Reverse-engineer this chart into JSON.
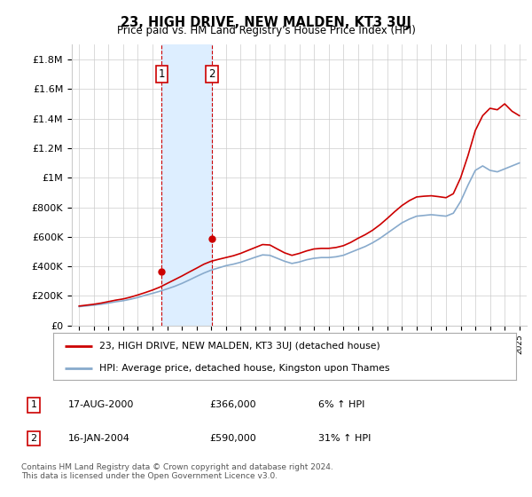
{
  "title": "23, HIGH DRIVE, NEW MALDEN, KT3 3UJ",
  "subtitle": "Price paid vs. HM Land Registry's House Price Index (HPI)",
  "ylabel_ticks": [
    "£0",
    "£200K",
    "£400K",
    "£600K",
    "£800K",
    "£1M",
    "£1.2M",
    "£1.4M",
    "£1.6M",
    "£1.8M"
  ],
  "ytick_values": [
    0,
    200000,
    400000,
    600000,
    800000,
    1000000,
    1200000,
    1400000,
    1600000,
    1800000
  ],
  "ylim": [
    0,
    1900000
  ],
  "xlim_start": 1994.5,
  "xlim_end": 2025.5,
  "sale1_x": 2000.62,
  "sale1_y": 366000,
  "sale2_x": 2004.04,
  "sale2_y": 590000,
  "sale1_label": "1",
  "sale2_label": "2",
  "vline1_x": 2000.62,
  "vline2_x": 2004.04,
  "shaded_x1": 2000.62,
  "shaded_x2": 2004.04,
  "legend_line1": "23, HIGH DRIVE, NEW MALDEN, KT3 3UJ (detached house)",
  "legend_line2": "HPI: Average price, detached house, Kingston upon Thames",
  "table_row1_num": "1",
  "table_row1_date": "17-AUG-2000",
  "table_row1_price": "£366,000",
  "table_row1_hpi": "6% ↑ HPI",
  "table_row2_num": "2",
  "table_row2_date": "16-JAN-2004",
  "table_row2_price": "£590,000",
  "table_row2_hpi": "31% ↑ HPI",
  "footnote1": "Contains HM Land Registry data © Crown copyright and database right 2024.",
  "footnote2": "This data is licensed under the Open Government Licence v3.0.",
  "line_color_red": "#cc0000",
  "line_color_blue": "#88aacc",
  "shade_color": "#ddeeff",
  "grid_color": "#cccccc",
  "bg_color": "#ffffff",
  "hpi_years": [
    1995.0,
    1995.5,
    1996.0,
    1996.5,
    1997.0,
    1997.5,
    1998.0,
    1998.5,
    1999.0,
    1999.5,
    2000.0,
    2000.5,
    2001.0,
    2001.5,
    2002.0,
    2002.5,
    2003.0,
    2003.5,
    2004.0,
    2004.5,
    2005.0,
    2005.5,
    2006.0,
    2006.5,
    2007.0,
    2007.5,
    2008.0,
    2008.5,
    2009.0,
    2009.5,
    2010.0,
    2010.5,
    2011.0,
    2011.5,
    2012.0,
    2012.5,
    2013.0,
    2013.5,
    2014.0,
    2014.5,
    2015.0,
    2015.5,
    2016.0,
    2016.5,
    2017.0,
    2017.5,
    2018.0,
    2018.5,
    2019.0,
    2019.5,
    2020.0,
    2020.5,
    2021.0,
    2021.5,
    2022.0,
    2022.5,
    2023.0,
    2023.5,
    2024.0,
    2024.5,
    2025.0
  ],
  "hpi_values": [
    128000,
    133000,
    138000,
    144000,
    152000,
    161000,
    168000,
    178000,
    190000,
    205000,
    218000,
    232000,
    248000,
    265000,
    285000,
    308000,
    332000,
    355000,
    375000,
    390000,
    405000,
    415000,
    428000,
    445000,
    462000,
    478000,
    475000,
    455000,
    435000,
    420000,
    430000,
    445000,
    455000,
    460000,
    460000,
    465000,
    475000,
    495000,
    515000,
    535000,
    560000,
    590000,
    625000,
    660000,
    695000,
    720000,
    740000,
    745000,
    750000,
    745000,
    740000,
    760000,
    840000,
    950000,
    1050000,
    1080000,
    1050000,
    1040000,
    1060000,
    1080000,
    1100000
  ],
  "red_years": [
    1995.0,
    1995.5,
    1996.0,
    1996.5,
    1997.0,
    1997.5,
    1998.0,
    1998.5,
    1999.0,
    1999.5,
    2000.0,
    2000.5,
    2001.0,
    2001.5,
    2002.0,
    2002.5,
    2003.0,
    2003.5,
    2004.0,
    2004.5,
    2005.0,
    2005.5,
    2006.0,
    2006.5,
    2007.0,
    2007.5,
    2008.0,
    2008.5,
    2009.0,
    2009.5,
    2010.0,
    2010.5,
    2011.0,
    2011.5,
    2012.0,
    2012.5,
    2013.0,
    2013.5,
    2014.0,
    2014.5,
    2015.0,
    2015.5,
    2016.0,
    2016.5,
    2017.0,
    2017.5,
    2018.0,
    2018.5,
    2019.0,
    2019.5,
    2020.0,
    2020.5,
    2021.0,
    2021.5,
    2022.0,
    2022.5,
    2023.0,
    2023.5,
    2024.0,
    2024.5,
    2025.0
  ],
  "red_values": [
    132000,
    138000,
    144000,
    152000,
    162000,
    172000,
    180000,
    192000,
    207000,
    223000,
    240000,
    260000,
    285000,
    310000,
    335000,
    362000,
    388000,
    415000,
    435000,
    448000,
    460000,
    472000,
    488000,
    508000,
    528000,
    548000,
    545000,
    518000,
    492000,
    475000,
    488000,
    505000,
    518000,
    522000,
    522000,
    528000,
    540000,
    562000,
    590000,
    615000,
    645000,
    682000,
    725000,
    770000,
    812000,
    845000,
    870000,
    875000,
    878000,
    872000,
    865000,
    892000,
    1000000,
    1150000,
    1320000,
    1420000,
    1470000,
    1460000,
    1500000,
    1450000,
    1420000
  ]
}
